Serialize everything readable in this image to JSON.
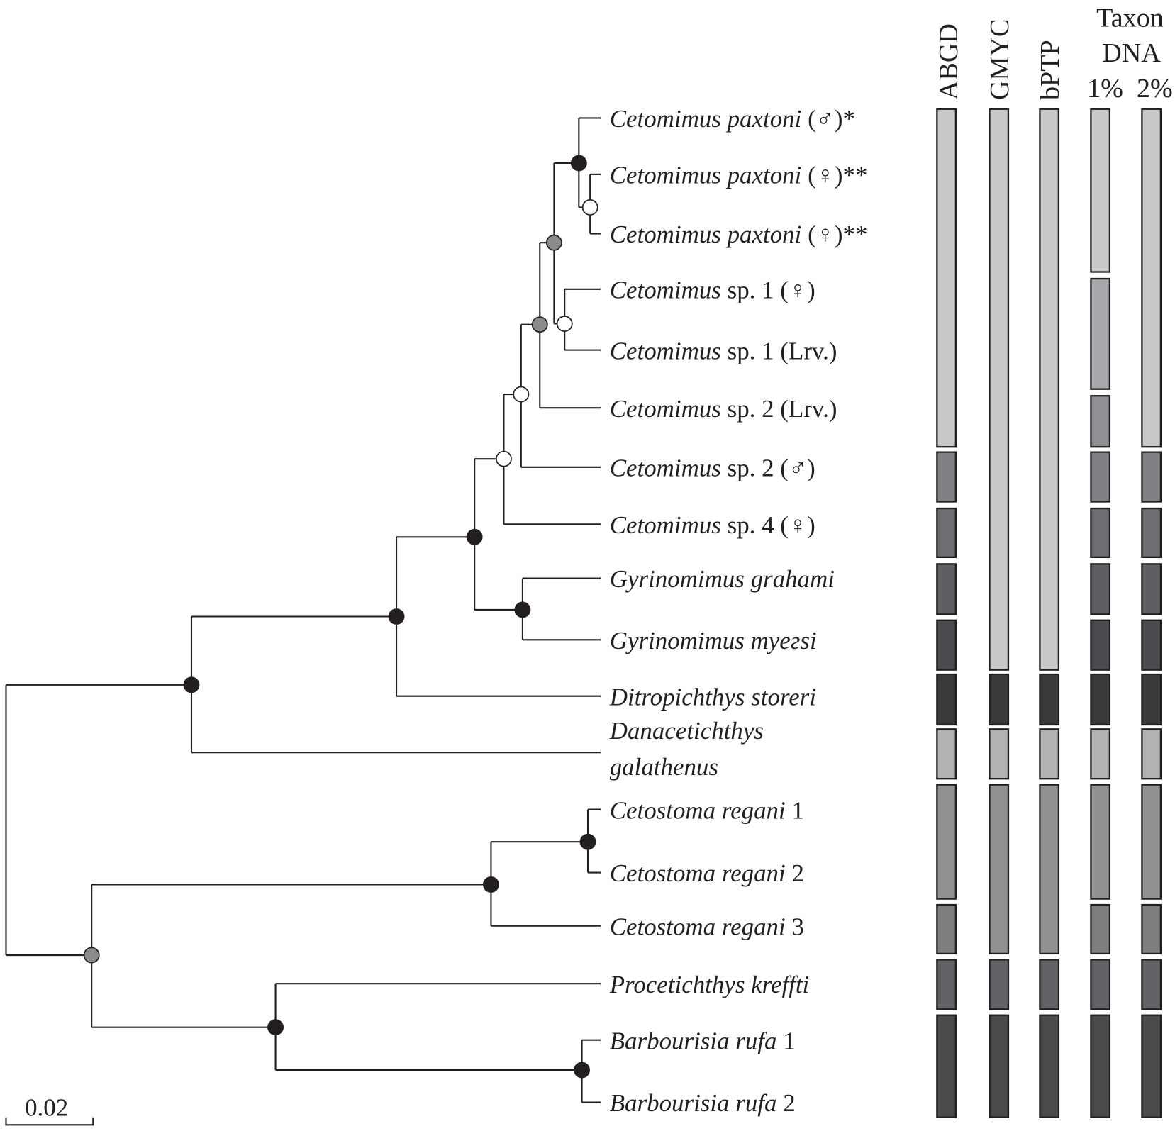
{
  "headers": {
    "abgd": "ABGD",
    "gmyc": "GMYC",
    "bptp": "bPTP",
    "taxon_line1": "Taxon",
    "taxon_line2": "DNA",
    "taxon_1": "1%",
    "taxon_2": "2%"
  },
  "scale_bar": {
    "label": "0.02"
  },
  "leaves": [
    {
      "italic": "Cetomimus paxtoni",
      "rest": " (♂)*"
    },
    {
      "italic": "Cetomimus paxtoni",
      "rest": " (♀)**"
    },
    {
      "italic": "Cetomimus paxtoni",
      "rest": " (♀)**"
    },
    {
      "italic": "Cetomimus",
      "rest": " sp. 1 (♀)"
    },
    {
      "italic": "Cetomimus",
      "rest": " sp. 1 (Lrv.)"
    },
    {
      "italic": "Cetomimus",
      "rest": " sp. 2 (Lrv.)"
    },
    {
      "italic": "Cetomimus",
      "rest": " sp. 2 (♂)"
    },
    {
      "italic": "Cetomimus",
      "rest": " sp. 4 (♀)"
    },
    {
      "italic": "Gyrinomimus grahami",
      "rest": ""
    },
    {
      "italic": "Gyrinomimus myeгsi",
      "rest": ""
    },
    {
      "italic": "Ditropichthys storeri",
      "rest": ""
    },
    {
      "italic": "Danacetichthys",
      "italic2": "galathenus",
      "rest": ""
    },
    {
      "italic": "Cetostoma regani",
      "rest": " 1"
    },
    {
      "italic": "Cetostoma regani",
      "rest": " 2"
    },
    {
      "italic": "Cetostoma regani",
      "rest": " 3"
    },
    {
      "italic": "Procetichthys kreffti",
      "rest": ""
    },
    {
      "italic": "Barbourisia rufa",
      "rest": " 1"
    },
    {
      "italic": "Barbourisia rufa",
      "rest": " 2"
    }
  ],
  "node_support": {
    "paxtoni": "black",
    "paxtoni_female": "white",
    "sp1": "white",
    "paxtoni_sp1": "grey",
    "plus_sp2_lrv": "grey",
    "plus_sp2_male": "white",
    "cetomimus": "white",
    "gyrinomimus": "black",
    "cetomimus_gyrinomimus": "black",
    "plus_ditropichthys": "black",
    "plus_danacetichthys": "black",
    "cetostoma_1_2": "black",
    "cetostoma": "black",
    "barbourisia": "black",
    "procetichthys_barbourisia": "black",
    "outgroup": "grey"
  },
  "support_colors": {
    "black": "#231f20",
    "grey": "#8a8b8d",
    "white": "#ffffff"
  },
  "delimitation": {
    "abgd": [
      {
        "from": 1,
        "to": 6,
        "color": "#c8c9cb"
      },
      {
        "from": 7,
        "to": 7,
        "color": "#808184"
      },
      {
        "from": 8,
        "to": 8,
        "color": "#6d6e71"
      },
      {
        "from": 9,
        "to": 9,
        "color": "#5e5f62"
      },
      {
        "from": 10,
        "to": 10,
        "color": "#4a4b4e"
      },
      {
        "from": 11,
        "to": 11,
        "color": "#3a3a3c"
      },
      {
        "from": 12,
        "to": 12,
        "color": "#b1b2b4"
      },
      {
        "from": 13,
        "to": 14,
        "color": "#909193"
      },
      {
        "from": 15,
        "to": 15,
        "color": "#7d7e80"
      },
      {
        "from": 16,
        "to": 16,
        "color": "#616265"
      },
      {
        "from": 17,
        "to": 18,
        "color": "#4a4a4c"
      }
    ],
    "gmyc": [
      {
        "from": 1,
        "to": 10,
        "color": "#c8c9cb"
      },
      {
        "from": 11,
        "to": 11,
        "color": "#3a3a3c"
      },
      {
        "from": 12,
        "to": 12,
        "color": "#b1b2b4"
      },
      {
        "from": 13,
        "to": 15,
        "color": "#909193"
      },
      {
        "from": 16,
        "to": 16,
        "color": "#616265"
      },
      {
        "from": 17,
        "to": 18,
        "color": "#4a4a4c"
      }
    ],
    "bptp": [
      {
        "from": 1,
        "to": 10,
        "color": "#c8c9cb"
      },
      {
        "from": 11,
        "to": 11,
        "color": "#3a3a3c"
      },
      {
        "from": 12,
        "to": 12,
        "color": "#b1b2b4"
      },
      {
        "from": 13,
        "to": 15,
        "color": "#909193"
      },
      {
        "from": 16,
        "to": 16,
        "color": "#616265"
      },
      {
        "from": 17,
        "to": 18,
        "color": "#4a4a4c"
      }
    ],
    "taxon_1": [
      {
        "from": 1,
        "to": 3,
        "color": "#c8c9cb"
      },
      {
        "from": 4,
        "to": 5,
        "color": "#a7a8ab"
      },
      {
        "from": 6,
        "to": 6,
        "color": "#8f9093"
      },
      {
        "from": 7,
        "to": 7,
        "color": "#808184"
      },
      {
        "from": 8,
        "to": 8,
        "color": "#6d6e71"
      },
      {
        "from": 9,
        "to": 9,
        "color": "#5e5f62"
      },
      {
        "from": 10,
        "to": 10,
        "color": "#4a4b4e"
      },
      {
        "from": 11,
        "to": 11,
        "color": "#3a3a3c"
      },
      {
        "from": 12,
        "to": 12,
        "color": "#b1b2b4"
      },
      {
        "from": 13,
        "to": 14,
        "color": "#909193"
      },
      {
        "from": 15,
        "to": 15,
        "color": "#7d7e80"
      },
      {
        "from": 16,
        "to": 16,
        "color": "#616265"
      },
      {
        "from": 17,
        "to": 18,
        "color": "#4a4a4c"
      }
    ],
    "taxon_2": [
      {
        "from": 1,
        "to": 6,
        "color": "#c8c9cb"
      },
      {
        "from": 7,
        "to": 7,
        "color": "#808184"
      },
      {
        "from": 8,
        "to": 8,
        "color": "#6d6e71"
      },
      {
        "from": 9,
        "to": 9,
        "color": "#5e5f62"
      },
      {
        "from": 10,
        "to": 10,
        "color": "#4a4b4e"
      },
      {
        "from": 11,
        "to": 11,
        "color": "#3a3a3c"
      },
      {
        "from": 12,
        "to": 12,
        "color": "#b1b2b4"
      },
      {
        "from": 13,
        "to": 14,
        "color": "#909193"
      },
      {
        "from": 15,
        "to": 15,
        "color": "#7d7e80"
      },
      {
        "from": 16,
        "to": 16,
        "color": "#616265"
      },
      {
        "from": 17,
        "to": 18,
        "color": "#4a4a4c"
      }
    ]
  }
}
